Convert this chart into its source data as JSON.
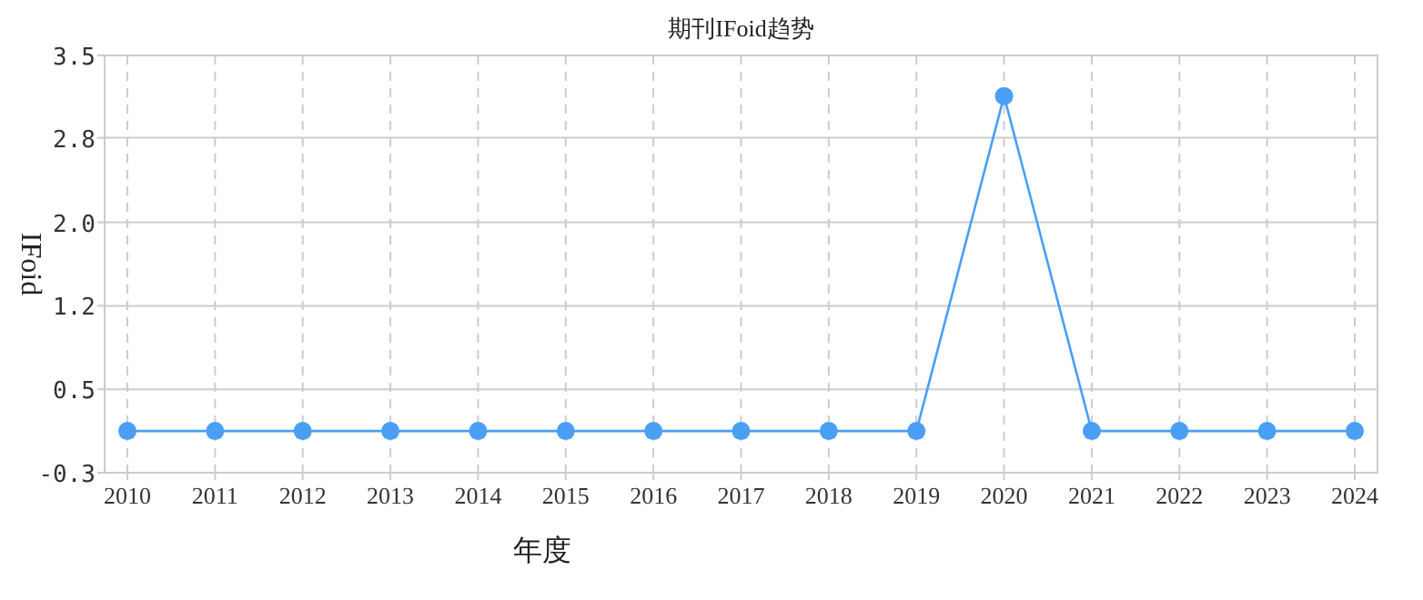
{
  "chart_data": {
    "type": "line",
    "title": "期刊IFoid趋势",
    "xlabel": "年度",
    "ylabel": "IFoid",
    "categories": [
      "2010",
      "2011",
      "2012",
      "2013",
      "2014",
      "2015",
      "2016",
      "2017",
      "2018",
      "2019",
      "2020",
      "2021",
      "2022",
      "2023",
      "2024"
    ],
    "series": [
      {
        "color": "#4a9ff5",
        "values": [
          0.08,
          0.08,
          0.08,
          0.08,
          0.08,
          0.08,
          0.08,
          0.08,
          0.08,
          0.08,
          3.13,
          0.08,
          0.08,
          0.08,
          0.08
        ]
      }
    ],
    "ylim": [
      -0.3,
      3.5
    ],
    "yticks": [
      -0.3,
      {
        "value": 0.46,
        "label": "0.5"
      },
      {
        "value": 1.22,
        "label": "1.2"
      },
      {
        "value": 1.98,
        "label": "2.0"
      },
      {
        "value": 2.75,
        "label": "2.8"
      },
      3.5
    ],
    "grid": true,
    "marker": "circle",
    "line_style": "solid"
  }
}
